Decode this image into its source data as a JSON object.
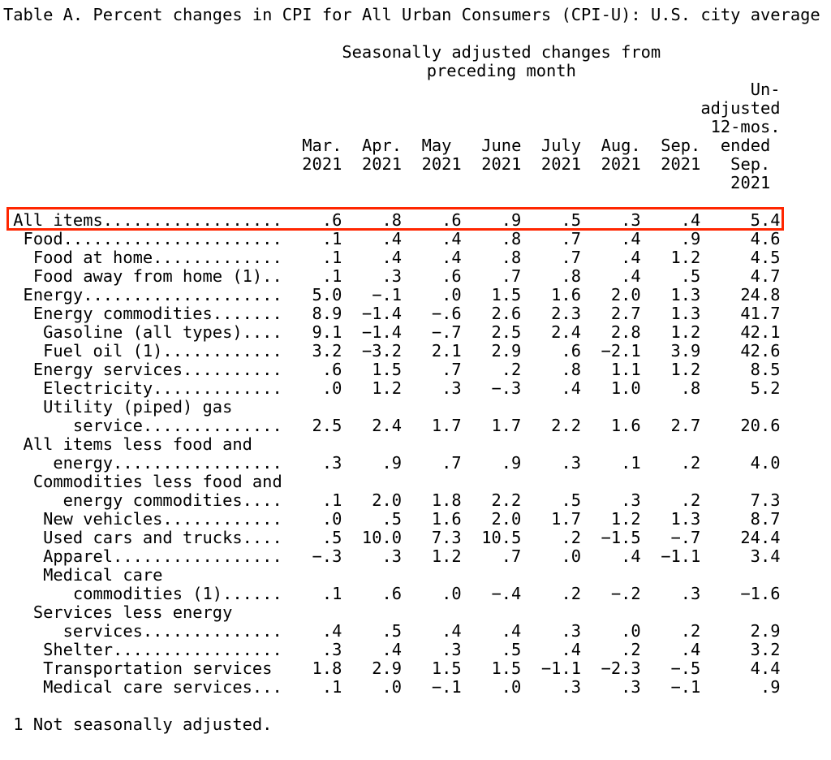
{
  "title": "Table A. Percent changes in CPI for All Urban Consumers (CPI-U): U.S. city average",
  "subtitle_lines": [
    "Seasonally adjusted changes from",
    "preceding month"
  ],
  "columns": {
    "months": [
      "Mar.",
      "Apr.",
      "May",
      "June",
      "July",
      "Aug.",
      "Sep."
    ],
    "year": "2021",
    "last_column": {
      "stack_lines": [
        "Un-",
        "adjusted",
        "12-mos."
      ],
      "ended_label": "ended",
      "sep_label": "Sep.",
      "year_label": "2021"
    }
  },
  "rows": [
    {
      "label": " All items..................",
      "values": [
        ".6",
        ".8",
        ".6",
        ".9",
        ".5",
        ".3",
        ".4",
        "5.4"
      ],
      "highlight": true
    },
    {
      "label": "  Food......................",
      "values": [
        ".1",
        ".4",
        ".4",
        ".8",
        ".7",
        ".4",
        ".9",
        "4.6"
      ]
    },
    {
      "label": "   Food at home.............",
      "values": [
        ".1",
        ".4",
        ".4",
        ".8",
        ".7",
        ".4",
        "1.2",
        "4.5"
      ]
    },
    {
      "label": "   Food away from home (1)..",
      "values": [
        ".1",
        ".3",
        ".6",
        ".7",
        ".8",
        ".4",
        ".5",
        "4.7"
      ]
    },
    {
      "label": "  Energy....................",
      "values": [
        "5.0",
        "−.1",
        ".0",
        "1.5",
        "1.6",
        "2.0",
        "1.3",
        "24.8"
      ]
    },
    {
      "label": "   Energy commodities.......",
      "values": [
        "8.9",
        "−1.4",
        "−.6",
        "2.6",
        "2.3",
        "2.7",
        "1.3",
        "41.7"
      ]
    },
    {
      "label": "    Gasoline (all types)....",
      "values": [
        "9.1",
        "−1.4",
        "−.7",
        "2.5",
        "2.4",
        "2.8",
        "1.2",
        "42.1"
      ]
    },
    {
      "label": "    Fuel oil (1)............",
      "values": [
        "3.2",
        "−3.2",
        "2.1",
        "2.9",
        ".6",
        "−2.1",
        "3.9",
        "42.6"
      ]
    },
    {
      "label": "   Energy services..........",
      "values": [
        ".6",
        "1.5",
        ".7",
        ".2",
        ".8",
        "1.1",
        "1.2",
        "8.5"
      ]
    },
    {
      "label": "    Electricity.............",
      "values": [
        ".0",
        "1.2",
        ".3",
        "−.3",
        ".4",
        "1.0",
        ".8",
        "5.2"
      ]
    },
    {
      "label": "    Utility (piped) gas",
      "values": null
    },
    {
      "label": "       service..............",
      "values": [
        "2.5",
        "2.4",
        "1.7",
        "1.7",
        "2.2",
        "1.6",
        "2.7",
        "20.6"
      ]
    },
    {
      "label": "  All items less food and",
      "values": null
    },
    {
      "label": "     energy.................",
      "values": [
        ".3",
        ".9",
        ".7",
        ".9",
        ".3",
        ".1",
        ".2",
        "4.0"
      ]
    },
    {
      "label": "   Commodities less food and",
      "values": null
    },
    {
      "label": "      energy commodities....",
      "values": [
        ".1",
        "2.0",
        "1.8",
        "2.2",
        ".5",
        ".3",
        ".2",
        "7.3"
      ]
    },
    {
      "label": "    New vehicles............",
      "values": [
        ".0",
        ".5",
        "1.6",
        "2.0",
        "1.7",
        "1.2",
        "1.3",
        "8.7"
      ]
    },
    {
      "label": "    Used cars and trucks....",
      "values": [
        ".5",
        "10.0",
        "7.3",
        "10.5",
        ".2",
        "−1.5",
        "−.7",
        "24.4"
      ]
    },
    {
      "label": "    Apparel.................",
      "values": [
        "−.3",
        ".3",
        "1.2",
        ".7",
        ".0",
        ".4",
        "−1.1",
        "3.4"
      ]
    },
    {
      "label": "    Medical care",
      "values": null
    },
    {
      "label": "       commodities (1)......",
      "values": [
        ".1",
        ".6",
        ".0",
        "−.4",
        ".2",
        "−.2",
        ".3",
        "−1.6"
      ]
    },
    {
      "label": "   Services less energy",
      "values": null
    },
    {
      "label": "      services..............",
      "values": [
        ".4",
        ".5",
        ".4",
        ".4",
        ".3",
        ".0",
        ".2",
        "2.9"
      ]
    },
    {
      "label": "    Shelter.................",
      "values": [
        ".3",
        ".4",
        ".3",
        ".5",
        ".4",
        ".2",
        ".4",
        "3.2"
      ]
    },
    {
      "label": "    Transportation services",
      "values": [
        "1.8",
        "2.9",
        "1.5",
        "1.5",
        "−1.1",
        "−2.3",
        "−.5",
        "4.4"
      ]
    },
    {
      "label": "    Medical care services...",
      "values": [
        ".1",
        ".0",
        "−.1",
        ".0",
        ".3",
        ".3",
        "−.1",
        ".9"
      ]
    }
  ],
  "footnote": " 1 Not seasonally adjusted.",
  "highlight_color": "#ff2600"
}
